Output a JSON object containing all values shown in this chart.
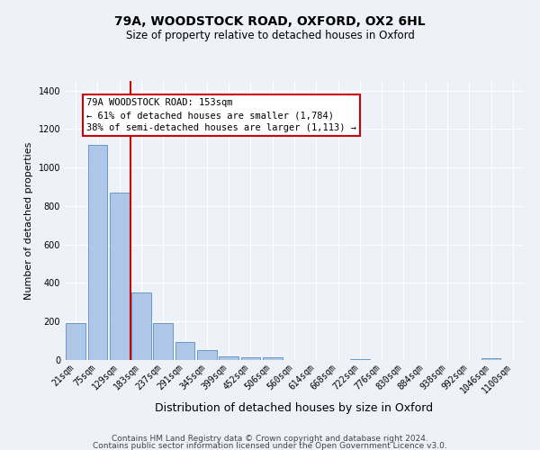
{
  "title_line1": "79A, WOODSTOCK ROAD, OXFORD, OX2 6HL",
  "title_line2": "Size of property relative to detached houses in Oxford",
  "xlabel": "Distribution of detached houses by size in Oxford",
  "ylabel": "Number of detached properties",
  "bin_labels": [
    "21sqm",
    "75sqm",
    "129sqm",
    "183sqm",
    "237sqm",
    "291sqm",
    "345sqm",
    "399sqm",
    "452sqm",
    "506sqm",
    "560sqm",
    "614sqm",
    "668sqm",
    "722sqm",
    "776sqm",
    "830sqm",
    "884sqm",
    "938sqm",
    "992sqm",
    "1046sqm",
    "1100sqm"
  ],
  "bar_heights": [
    190,
    1120,
    870,
    350,
    190,
    95,
    50,
    20,
    15,
    15,
    0,
    0,
    0,
    5,
    0,
    0,
    0,
    0,
    0,
    10,
    0
  ],
  "bar_color": "#aec6e8",
  "bar_edgecolor": "#5a8fc2",
  "vline_color": "#cc0000",
  "annotation_text": "79A WOODSTOCK ROAD: 153sqm\n← 61% of detached houses are smaller (1,784)\n38% of semi-detached houses are larger (1,113) →",
  "ylim": [
    0,
    1450
  ],
  "yticks": [
    0,
    200,
    400,
    600,
    800,
    1000,
    1200,
    1400
  ],
  "background_color": "#eef2f8",
  "grid_color": "#ffffff",
  "title_fontsize": 10,
  "subtitle_fontsize": 8.5,
  "xlabel_fontsize": 9,
  "ylabel_fontsize": 8,
  "tick_fontsize": 7,
  "footer_fontsize": 6.5,
  "annotation_fontsize": 7.5,
  "footer_line1": "Contains HM Land Registry data © Crown copyright and database right 2024.",
  "footer_line2": "Contains public sector information licensed under the Open Government Licence v3.0."
}
